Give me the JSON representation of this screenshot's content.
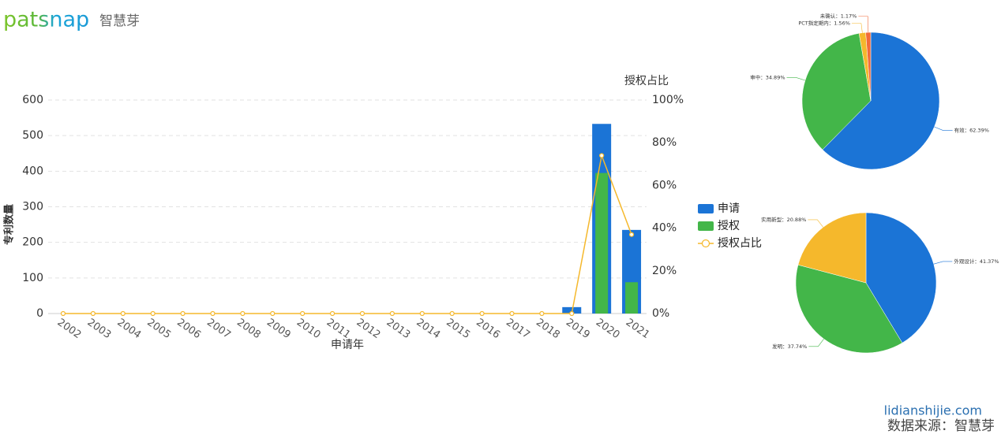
{
  "header": {
    "logo": "patsnap",
    "logo_cn": "智慧芽"
  },
  "footer": {
    "site": "lidianshijie.com",
    "source": "数据来源：智慧芽"
  },
  "chart_data": [
    {
      "type": "bar",
      "x_label": "申请年",
      "y_label": "专利数量",
      "y2_label": "授权占比",
      "categories": [
        "2002",
        "2003",
        "2004",
        "2005",
        "2006",
        "2007",
        "2008",
        "2009",
        "2010",
        "2011",
        "2012",
        "2013",
        "2014",
        "2015",
        "2016",
        "2017",
        "2018",
        "2019",
        "2020",
        "2021"
      ],
      "series": [
        {
          "name": "申请",
          "type": "bar",
          "color": "#1b74d6",
          "values": [
            0,
            0,
            0,
            0,
            0,
            0,
            0,
            0,
            0,
            0,
            0,
            0,
            0,
            0,
            0,
            0,
            0,
            18,
            533,
            235
          ]
        },
        {
          "name": "授权",
          "type": "bar",
          "color": "#43b649",
          "values": [
            0,
            0,
            0,
            0,
            0,
            0,
            0,
            0,
            0,
            0,
            0,
            0,
            0,
            0,
            0,
            0,
            0,
            0,
            395,
            88
          ]
        },
        {
          "name": "授权占比",
          "type": "line",
          "axis": "y2",
          "color": "#f5b82c",
          "values": [
            0,
            0,
            0,
            0,
            0,
            0,
            0,
            0,
            0,
            0,
            0,
            0,
            0,
            0,
            0,
            0,
            0,
            0,
            74,
            37
          ]
        }
      ],
      "ylim": [
        0,
        600
      ],
      "yticks": [
        0,
        100,
        200,
        300,
        400,
        500,
        600
      ],
      "y2lim": [
        0,
        100
      ],
      "y2ticks": [
        {
          "value": 0,
          "label": "0%"
        },
        {
          "value": 20,
          "label": "20%"
        },
        {
          "value": 40,
          "label": "40%"
        },
        {
          "value": 60,
          "label": "60%"
        },
        {
          "value": 80,
          "label": "80%"
        },
        {
          "value": 100,
          "label": "100%"
        }
      ],
      "grid": true,
      "legend": "right"
    },
    {
      "type": "pie",
      "values": [
        62.39,
        34.89,
        1.56,
        1.17
      ],
      "value_labels": [
        "有效：62.39%",
        "审中：34.89%",
        "PCT指定期内：1.56%",
        "未确认：1.17%"
      ],
      "colors": [
        "#1b74d6",
        "#43b649",
        "#f5b82c",
        "#f26b3a"
      ]
    },
    {
      "type": "pie",
      "values": [
        41.37,
        37.74,
        20.88
      ],
      "value_labels": [
        "外观设计：41.37%",
        "发明：37.74%",
        "实用新型：20.88%"
      ],
      "colors": [
        "#1b74d6",
        "#43b649",
        "#f5b82c"
      ]
    }
  ]
}
